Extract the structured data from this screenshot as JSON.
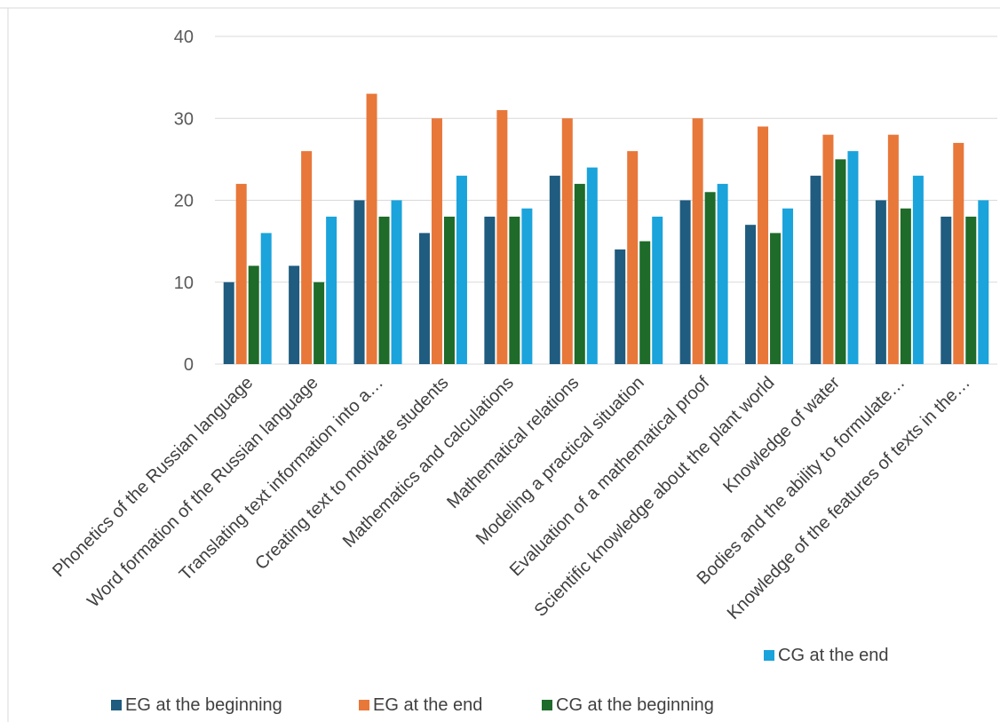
{
  "chart_data": {
    "type": "bar",
    "title": "",
    "xlabel": "",
    "ylabel": "",
    "ylim": [
      0,
      40
    ],
    "yticks": [
      0,
      10,
      20,
      30,
      40
    ],
    "grid": true,
    "legend_position": "bottom",
    "categories": [
      "Phonetics of the Russian language",
      "Word formation of the Russian language",
      "Translating text information into a…",
      "Creating text to motivate students",
      "Mathematics and calculations",
      "Mathematical relations",
      "Modeling a practical situation",
      "Evaluation of a mathematical proof",
      "Scientific knowledge about the plant world",
      "Knowledge of water",
      "Bodies and the ability to formulate…",
      "Knowledge of the features of texts in the…"
    ],
    "series": [
      {
        "name": "EG at the beginning",
        "color": "#1f5c7f",
        "values": [
          10,
          12,
          20,
          16,
          18,
          23,
          14,
          20,
          17,
          23,
          20,
          18
        ]
      },
      {
        "name": "EG at the end",
        "color": "#e8773a",
        "values": [
          22,
          26,
          33,
          30,
          31,
          30,
          26,
          30,
          29,
          28,
          28,
          27
        ]
      },
      {
        "name": "CG at the beginning",
        "color": "#1e6b2a",
        "values": [
          12,
          10,
          18,
          18,
          18,
          22,
          15,
          21,
          16,
          25,
          19,
          18
        ]
      },
      {
        "name": "CG at the end",
        "color": "#1ba3db",
        "values": [
          16,
          18,
          20,
          23,
          19,
          24,
          18,
          22,
          19,
          26,
          23,
          20
        ]
      }
    ]
  }
}
